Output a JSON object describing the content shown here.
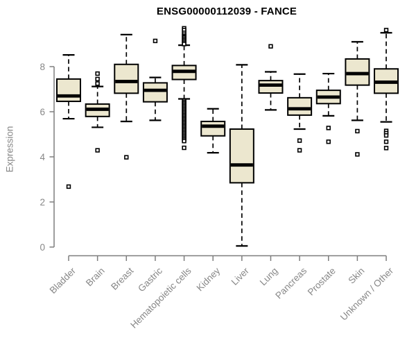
{
  "chart_data": {
    "type": "boxplot",
    "title": "ENSG00000112039 - FANCE",
    "ylabel": "Expression",
    "xlabel": "",
    "yticks": [
      0,
      2,
      4,
      6,
      8
    ],
    "ylim": [
      0,
      9.9
    ],
    "grid": false,
    "legend": "none",
    "colors": {
      "box_fill": "#ece7cf",
      "box_stroke": "#000000",
      "axis": "#7d7d7d",
      "tick_label": "#878787",
      "title": "#000000",
      "background": "#ffffff"
    },
    "categories": [
      "Bladder",
      "Brain",
      "Breast",
      "Gastric",
      "Hematopoietic cells",
      "Kidney",
      "Liver",
      "Lung",
      "Pancreas",
      "Prostate",
      "Skin",
      "Unknown / Other"
    ],
    "boxes": [
      {
        "category": "Bladder",
        "low": 5.69,
        "q1": 6.46,
        "median": 6.7,
        "q3": 7.45,
        "high": 8.52,
        "outliers": [
          2.68
        ]
      },
      {
        "category": "Brain",
        "low": 5.31,
        "q1": 5.79,
        "median": 6.11,
        "q3": 6.34,
        "high": 7.12,
        "outliers": [
          7.69,
          7.45,
          7.25,
          4.29
        ]
      },
      {
        "category": "Breast",
        "low": 5.57,
        "q1": 6.82,
        "median": 7.34,
        "q3": 8.1,
        "high": 9.42,
        "outliers": [
          3.98
        ]
      },
      {
        "category": "Gastric",
        "low": 5.62,
        "q1": 6.44,
        "median": 6.95,
        "q3": 7.28,
        "high": 7.52,
        "outliers": [
          9.14
        ]
      },
      {
        "category": "Hematopoietic cells",
        "low": 6.57,
        "q1": 7.43,
        "median": 7.79,
        "q3": 8.05,
        "high": 8.95,
        "outliers": [
          9.7,
          9.62,
          9.5,
          9.42,
          9.35,
          9.3,
          9.24,
          9.18,
          9.12,
          9.06,
          9.0,
          6.5,
          6.44,
          6.38,
          6.32,
          6.26,
          6.2,
          6.14,
          6.08,
          6.02,
          5.96,
          5.9,
          5.84,
          5.78,
          5.72,
          5.66,
          5.6,
          5.54,
          5.48,
          5.42,
          5.36,
          5.3,
          5.24,
          5.18,
          5.12,
          5.06,
          5.0,
          4.94,
          4.88,
          4.82,
          4.76,
          4.7,
          4.4
        ]
      },
      {
        "category": "Kidney",
        "low": 4.18,
        "q1": 4.93,
        "median": 5.36,
        "q3": 5.57,
        "high": 6.13,
        "outliers": []
      },
      {
        "category": "Liver",
        "low": 0.05,
        "q1": 2.85,
        "median": 3.64,
        "q3": 5.23,
        "high": 8.08,
        "outliers": []
      },
      {
        "category": "Lung",
        "low": 6.08,
        "q1": 6.83,
        "median": 7.18,
        "q3": 7.38,
        "high": 7.77,
        "outliers": [
          8.9
        ]
      },
      {
        "category": "Pancreas",
        "low": 5.23,
        "q1": 5.85,
        "median": 6.13,
        "q3": 6.62,
        "high": 7.67,
        "outliers": [
          4.72,
          4.29
        ]
      },
      {
        "category": "Prostate",
        "low": 5.82,
        "q1": 6.36,
        "median": 6.65,
        "q3": 6.95,
        "high": 7.69,
        "outliers": [
          5.28,
          4.67
        ]
      },
      {
        "category": "Skin",
        "low": 5.62,
        "q1": 7.18,
        "median": 7.69,
        "q3": 8.34,
        "high": 9.1,
        "outliers": [
          5.14,
          4.11
        ]
      },
      {
        "category": "Unknown / Other",
        "low": 5.55,
        "q1": 6.82,
        "median": 7.31,
        "q3": 7.9,
        "high": 9.5,
        "outliers": [
          9.62,
          5.15,
          5.05,
          4.95,
          4.67,
          4.39
        ]
      }
    ]
  }
}
